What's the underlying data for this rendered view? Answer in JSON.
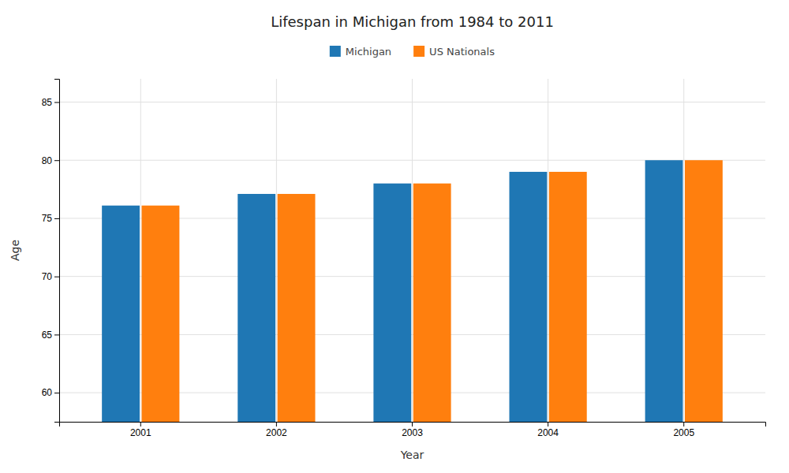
{
  "chart_data": {
    "type": "bar",
    "title": "Lifespan in Michigan from 1984 to 2011",
    "x_label": "Year",
    "y_label": "Age",
    "categories": [
      "2001",
      "2002",
      "2003",
      "2004",
      "2005"
    ],
    "series": [
      {
        "name": "Michigan",
        "values": [
          76.1,
          77.1,
          78.0,
          79.0,
          80.0
        ]
      },
      {
        "name": "US Nationals",
        "values": [
          76.1,
          77.1,
          78.0,
          79.0,
          80.0
        ]
      }
    ],
    "ylim": [
      57.5,
      87
    ],
    "yticks": [
      60,
      65,
      70,
      75,
      80,
      85
    ],
    "grid": true,
    "legend": "top"
  }
}
